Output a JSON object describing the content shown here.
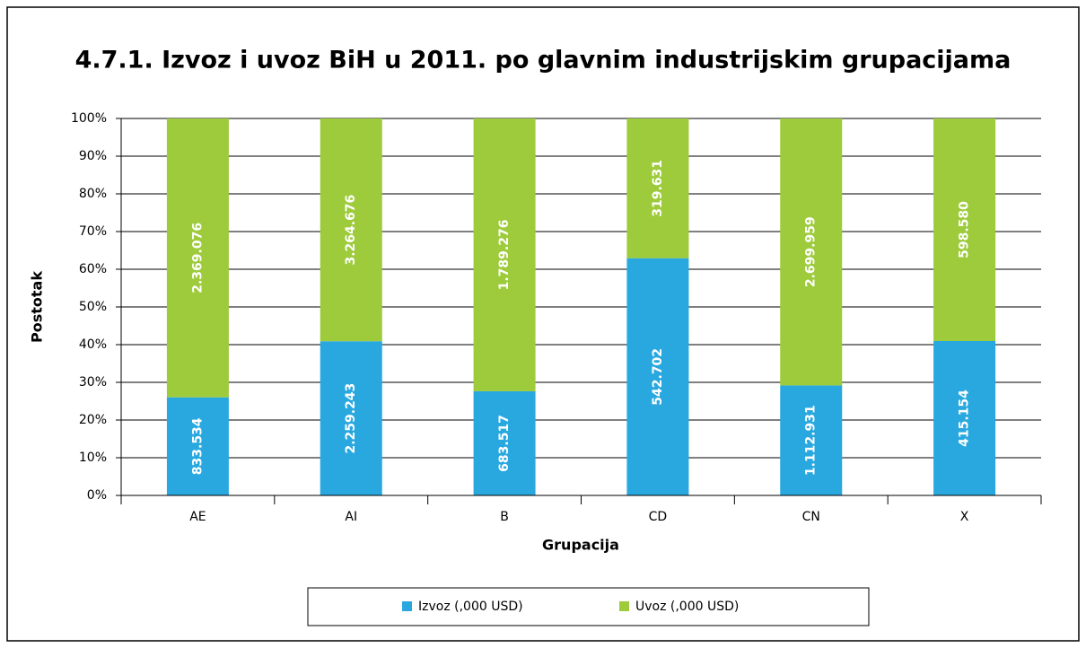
{
  "chart_data": {
    "type": "bar",
    "stacked": "percent",
    "title": "4.7.1. Izvoz i uvoz BiH u 2011. po glavnim industrijskim grupacijama",
    "xlabel": "Grupacija",
    "ylabel": "Postotak",
    "categories": [
      "AE",
      "AI",
      "B",
      "CD",
      "CN",
      "X"
    ],
    "series": [
      {
        "name": "Izvoz (,000 USD)",
        "color": "#29a8e0",
        "values": [
          833534,
          2259243,
          683517,
          542702,
          1112931,
          415154
        ],
        "value_labels": [
          "833.534",
          "2.259.243",
          "683.517",
          "542.702",
          "1.112.931",
          "415.154"
        ]
      },
      {
        "name": "Uvoz (,000 USD)",
        "color": "#9dcb3b",
        "values": [
          2369076,
          3264676,
          1789276,
          319631,
          2699959,
          598580
        ],
        "value_labels": [
          "2.369.076",
          "3.264.676",
          "1.789.276",
          "319.631",
          "2.699.959",
          "598.580"
        ]
      }
    ],
    "ylim": [
      0,
      100
    ],
    "yticks": [
      {
        "value": 0,
        "label": "0%"
      },
      {
        "value": 10,
        "label": "10%"
      },
      {
        "value": 20,
        "label": "20%"
      },
      {
        "value": 30,
        "label": "30%"
      },
      {
        "value": 40,
        "label": "40%"
      },
      {
        "value": 50,
        "label": "50%"
      },
      {
        "value": 60,
        "label": "60%"
      },
      {
        "value": 70,
        "label": "70%"
      },
      {
        "value": 80,
        "label": "80%"
      },
      {
        "value": 90,
        "label": "90%"
      },
      {
        "value": 100,
        "label": "100%"
      }
    ],
    "grid": true,
    "legend": "bottom"
  }
}
